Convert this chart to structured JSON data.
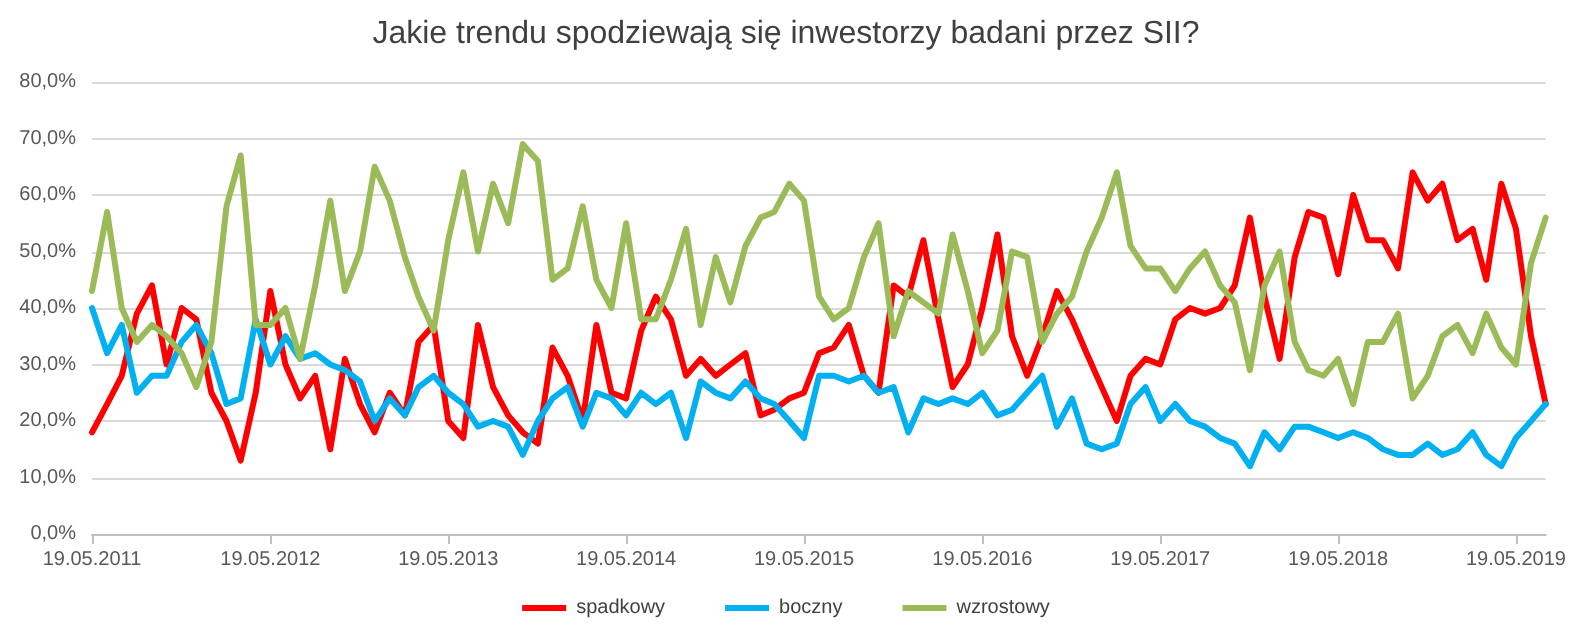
{
  "chart_data": {
    "type": "line",
    "title": "Jakie trendu spodziewają się inwestorzy badani przez SII?",
    "x": [
      "2011-05-19",
      "2011-06-19",
      "2011-07-19",
      "2011-08-19",
      "2011-09-19",
      "2011-10-19",
      "2011-11-19",
      "2011-12-19",
      "2012-01-19",
      "2012-02-19",
      "2012-03-19",
      "2012-04-19",
      "2012-05-19",
      "2012-06-19",
      "2012-07-19",
      "2012-08-19",
      "2012-09-19",
      "2012-10-19",
      "2012-11-19",
      "2012-12-19",
      "2013-01-19",
      "2013-02-19",
      "2013-03-19",
      "2013-04-19",
      "2013-05-19",
      "2013-06-19",
      "2013-07-19",
      "2013-08-19",
      "2013-09-19",
      "2013-10-19",
      "2013-11-19",
      "2013-12-19",
      "2014-01-19",
      "2014-02-19",
      "2014-03-19",
      "2014-04-19",
      "2014-05-19",
      "2014-06-19",
      "2014-07-19",
      "2014-08-19",
      "2014-09-19",
      "2014-10-19",
      "2014-11-19",
      "2014-12-19",
      "2015-01-19",
      "2015-02-19",
      "2015-03-19",
      "2015-04-19",
      "2015-05-19",
      "2015-06-19",
      "2015-07-19",
      "2015-08-19",
      "2015-09-19",
      "2015-10-19",
      "2015-11-19",
      "2015-12-19",
      "2016-01-19",
      "2016-02-19",
      "2016-03-19",
      "2016-04-19",
      "2016-05-19",
      "2016-06-19",
      "2016-07-19",
      "2016-08-19",
      "2016-09-19",
      "2016-10-19",
      "2016-11-19",
      "2016-12-19",
      "2017-01-19",
      "2017-02-19",
      "2017-03-19",
      "2017-04-19",
      "2017-05-19",
      "2017-06-19",
      "2017-07-19",
      "2017-08-19",
      "2017-09-19",
      "2017-10-19",
      "2017-11-19",
      "2017-12-19",
      "2018-01-19",
      "2018-02-19",
      "2018-03-19",
      "2018-04-19",
      "2018-05-19",
      "2018-06-19",
      "2018-07-19",
      "2018-08-19",
      "2018-09-19",
      "2018-10-19",
      "2018-11-19",
      "2018-12-19",
      "2019-01-19",
      "2019-02-19",
      "2019-03-19",
      "2019-04-19",
      "2019-05-19",
      "2019-06-19",
      "2019-07-19"
    ],
    "series": [
      {
        "name": "spadkowy",
        "color": "#ff0000",
        "values": [
          18,
          23,
          28,
          39,
          44,
          30,
          40,
          38,
          25,
          20,
          13,
          25,
          43,
          30,
          24,
          28,
          15,
          31,
          23,
          18,
          25,
          21,
          34,
          37,
          20,
          17,
          37,
          26,
          21,
          18,
          16,
          33,
          28,
          20,
          37,
          25,
          24,
          36,
          42,
          38,
          28,
          31,
          28,
          30,
          32,
          21,
          22,
          24,
          25,
          32,
          33,
          37,
          28,
          25,
          44,
          42,
          52,
          38,
          26,
          30,
          40,
          53,
          35,
          28,
          35,
          43,
          38,
          32,
          26,
          20,
          28,
          31,
          30,
          38,
          40,
          39,
          40,
          44,
          56,
          42,
          31,
          49,
          57,
          56,
          46,
          60,
          52,
          52,
          47,
          64,
          59,
          62,
          52,
          54,
          45,
          62,
          54,
          35,
          23
        ]
      },
      {
        "name": "boczny",
        "color": "#00b0f0",
        "values": [
          40,
          32,
          37,
          25,
          28,
          28,
          34,
          37,
          32,
          23,
          24,
          38,
          30,
          35,
          31,
          32,
          30,
          29,
          27,
          20,
          24,
          21,
          26,
          28,
          25,
          23,
          19,
          20,
          19,
          14,
          20,
          24,
          26,
          19,
          25,
          24,
          21,
          25,
          23,
          25,
          17,
          27,
          25,
          24,
          27,
          24,
          23,
          20,
          17,
          28,
          28,
          27,
          28,
          25,
          26,
          18,
          24,
          23,
          24,
          23,
          25,
          21,
          22,
          25,
          28,
          19,
          24,
          16,
          15,
          16,
          23,
          26,
          20,
          23,
          20,
          19,
          17,
          16,
          12,
          18,
          15,
          19,
          19,
          18,
          17,
          18,
          17,
          15,
          14,
          14,
          16,
          14,
          15,
          18,
          14,
          12,
          17,
          20,
          23
        ]
      },
      {
        "name": "wzrostowy",
        "color": "#9bbb59",
        "values": [
          43,
          57,
          40,
          34,
          37,
          35,
          32,
          26,
          34,
          58,
          67,
          37,
          37,
          40,
          31,
          44,
          59,
          43,
          50,
          65,
          59,
          49,
          42,
          36,
          52,
          64,
          50,
          62,
          55,
          69,
          66,
          45,
          47,
          58,
          45,
          40,
          55,
          38,
          38,
          45,
          54,
          37,
          49,
          41,
          51,
          56,
          57,
          62,
          59,
          42,
          38,
          40,
          49,
          55,
          35,
          43,
          41,
          39,
          53,
          43,
          32,
          36,
          50,
          49,
          34,
          39,
          42,
          50,
          56,
          64,
          51,
          47,
          47,
          43,
          47,
          50,
          44,
          41,
          29,
          44,
          50,
          34,
          29,
          28,
          31,
          23,
          34,
          34,
          39,
          24,
          28,
          35,
          37,
          32,
          39,
          33,
          30,
          48,
          56
        ]
      }
    ],
    "xlim": [
      "2011-05-19",
      "2019-07-19"
    ],
    "xticks": [
      {
        "value": "2011-05-19",
        "label": "19.05.2011"
      },
      {
        "value": "2012-05-19",
        "label": "19.05.2012"
      },
      {
        "value": "2013-05-19",
        "label": "19.05.2013"
      },
      {
        "value": "2014-05-19",
        "label": "19.05.2014"
      },
      {
        "value": "2015-05-19",
        "label": "19.05.2015"
      },
      {
        "value": "2016-05-19",
        "label": "19.05.2016"
      },
      {
        "value": "2017-05-19",
        "label": "19.05.2017"
      },
      {
        "value": "2018-05-19",
        "label": "19.05.2018"
      },
      {
        "value": "2019-05-19",
        "label": "19.05.2019"
      }
    ],
    "ylim": [
      0,
      80
    ],
    "yticks": [
      {
        "value": 0,
        "label": "0,0%"
      },
      {
        "value": 10,
        "label": "10,0%"
      },
      {
        "value": 20,
        "label": "20,0%"
      },
      {
        "value": 30,
        "label": "30,0%"
      },
      {
        "value": 40,
        "label": "40,0%"
      },
      {
        "value": 50,
        "label": "50,0%"
      },
      {
        "value": 60,
        "label": "60,0%"
      },
      {
        "value": 70,
        "label": "70,0%"
      },
      {
        "value": 80,
        "label": "80,0%"
      }
    ],
    "grid": "y",
    "legend": "bottom",
    "marker": "none",
    "line_style": "solid"
  }
}
